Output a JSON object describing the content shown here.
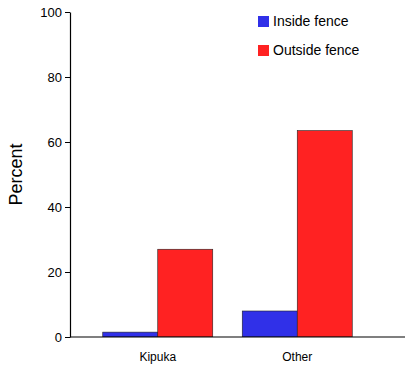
{
  "chart_data": {
    "type": "bar",
    "y_label": "Percent",
    "categories": [
      "Kipuka",
      "Other"
    ],
    "series": [
      {
        "name": "Inside fence",
        "color": "#3030e8",
        "values": [
          1.5,
          8
        ]
      },
      {
        "name": "Outside fence",
        "color": "#ff2222",
        "values": [
          27,
          63.5
        ]
      }
    ],
    "ylim": [
      0,
      100
    ],
    "yticks": [
      0,
      20,
      40,
      60,
      80,
      100
    ],
    "grid": false,
    "legend": "upper right"
  }
}
